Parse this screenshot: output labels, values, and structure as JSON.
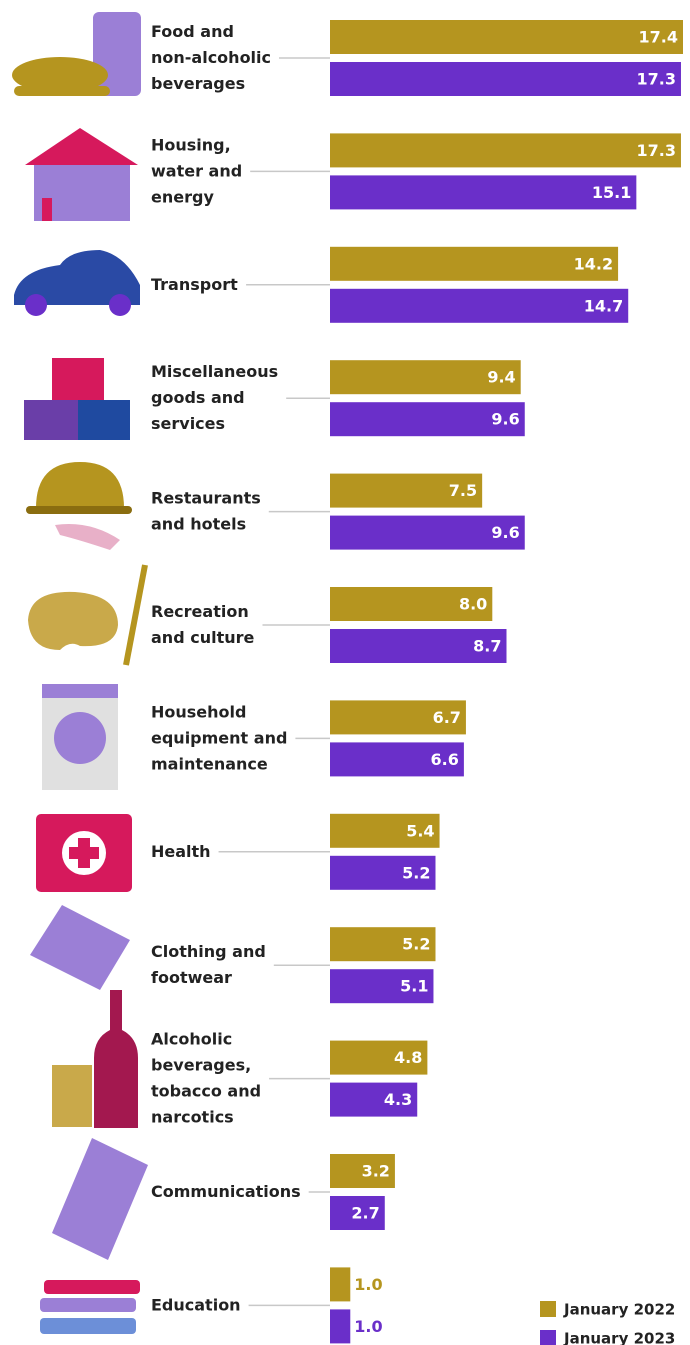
{
  "chart_data": {
    "type": "bar",
    "orientation": "horizontal",
    "categories": [
      "Food and\nnon-alcoholic\nbeverages",
      "Housing,\nwater and\nenergy",
      "Transport",
      "Miscellaneous\ngoods and\nservices",
      "Restaurants\nand hotels",
      "Recreation\nand culture",
      "Household\nequipment and\nmaintenance",
      "Health",
      "Clothing and\nfootwear",
      "Alcoholic\nbeverages,\ntobacco and\nnarcotics",
      "Communications",
      "Education"
    ],
    "series": [
      {
        "name": "January 2022",
        "color": "#b5951f",
        "values": [
          17.4,
          17.3,
          14.2,
          9.4,
          7.5,
          8.0,
          6.7,
          5.4,
          5.2,
          4.8,
          3.2,
          1.0
        ],
        "value_labels": [
          "17.4",
          "17.3",
          "14.2",
          "9.4",
          "7.5",
          "8.0",
          "6.7",
          "5.4",
          "5.2",
          "4.8",
          "3.2",
          "1.0"
        ]
      },
      {
        "name": "January 2023",
        "color": "#6a2fc9",
        "values": [
          17.3,
          15.1,
          14.7,
          9.6,
          9.6,
          8.7,
          6.6,
          5.2,
          5.1,
          4.3,
          2.7,
          1.0
        ],
        "value_labels": [
          "17.3",
          "15.1",
          "14.7",
          "9.6",
          "9.6",
          "8.7",
          "6.6",
          "5.2",
          "5.1",
          "4.3",
          "2.7",
          "1.0"
        ]
      }
    ],
    "legend": "bottom-right"
  }
}
